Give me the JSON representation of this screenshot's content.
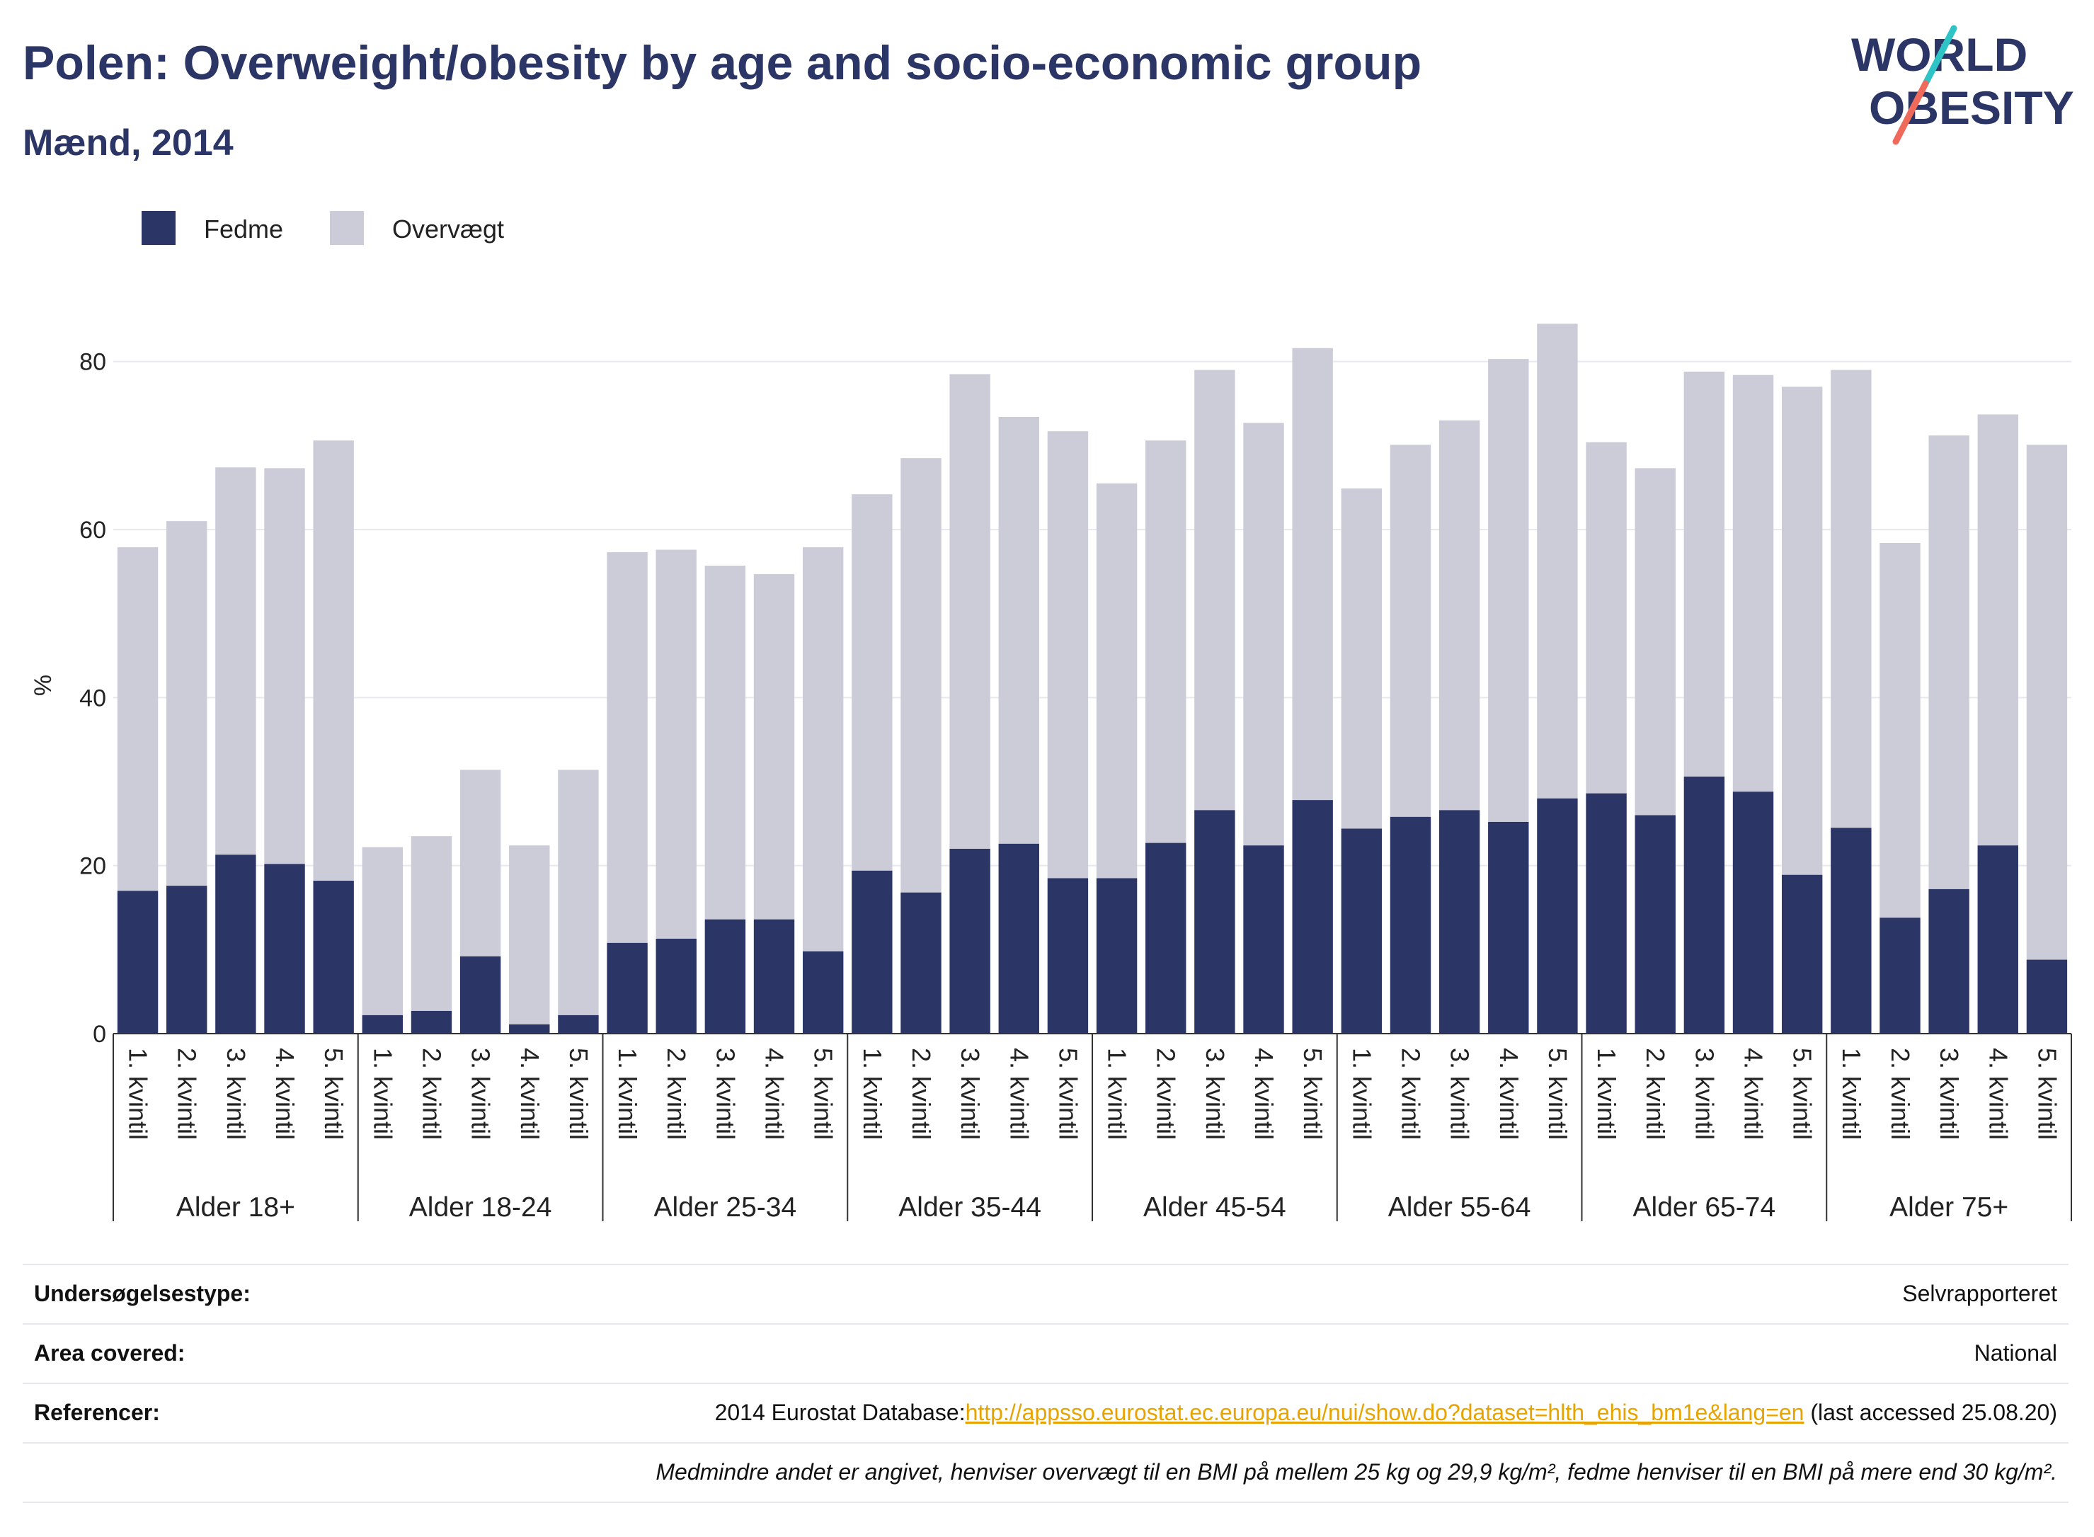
{
  "title": "Polen: Overweight/obesity by age and socio-economic group",
  "subtitle": "Mænd, 2014",
  "logo": {
    "line1": "WORLD",
    "line2": "OBESITY"
  },
  "colors": {
    "fedme": "#2b3566",
    "overvaegt": "#cbccd8",
    "title": "#2b3566",
    "link": "#e7a400"
  },
  "chart_data": {
    "type": "bar",
    "stacked": true,
    "ylabel": "%",
    "ylim": [
      0,
      90
    ],
    "yticks": [
      0,
      20,
      40,
      60,
      80
    ],
    "grid": true,
    "legend_position": "top-left",
    "groups": [
      "Alder 18+",
      "Alder 18-24",
      "Alder 25-34",
      "Alder 35-44",
      "Alder 45-54",
      "Alder 55-64",
      "Alder 65-74",
      "Alder 75+"
    ],
    "categories": [
      "1. kvintil",
      "2. kvintil",
      "3. kvintil",
      "4. kvintil",
      "5. kvintil"
    ],
    "series": [
      {
        "name": "Fedme",
        "values": [
          [
            17.0,
            17.6,
            21.3,
            20.2,
            18.2
          ],
          [
            2.2,
            2.7,
            9.2,
            1.1,
            2.2
          ],
          [
            10.8,
            11.3,
            13.6,
            13.6,
            9.8
          ],
          [
            19.4,
            16.8,
            22.0,
            22.6,
            18.5
          ],
          [
            18.5,
            22.7,
            26.6,
            22.4,
            27.8
          ],
          [
            24.4,
            25.8,
            26.6,
            25.2,
            28.0
          ],
          [
            28.6,
            26.0,
            30.6,
            28.8,
            18.9
          ],
          [
            24.5,
            13.8,
            17.2,
            22.4,
            8.8
          ]
        ]
      },
      {
        "name": "Overvægt",
        "values": [
          [
            40.9,
            43.4,
            46.1,
            47.1,
            52.4
          ],
          [
            20.0,
            20.8,
            22.2,
            21.3,
            29.2
          ],
          [
            46.5,
            46.3,
            42.1,
            41.1,
            48.1
          ],
          [
            44.8,
            51.7,
            56.5,
            50.8,
            53.2
          ],
          [
            47.0,
            47.9,
            52.4,
            50.3,
            53.8
          ],
          [
            40.5,
            44.3,
            46.4,
            55.1,
            56.5
          ],
          [
            41.8,
            41.3,
            48.2,
            49.6,
            58.1
          ],
          [
            54.5,
            44.6,
            54.0,
            51.3,
            61.3
          ]
        ]
      }
    ]
  },
  "info": {
    "survey_type_label": "Undersøgelsestype:",
    "survey_type_value": "Selvrapporteret",
    "area_label": "Area covered:",
    "area_value": "National",
    "references_label": "Referencer:",
    "references_prefix": "2014 Eurostat Database:",
    "references_link": "http://appsso.eurostat.ec.europa.eu/nui/show.do?dataset=hlth_ehis_bm1e&lang=en",
    "references_suffix": " (last accessed 25.08.20)",
    "note": "Medmindre andet er angivet, henviser overvægt til en BMI på mellem 25 kg og 29,9 kg/m², fedme henviser til en BMI på mere end 30 kg/m²."
  }
}
